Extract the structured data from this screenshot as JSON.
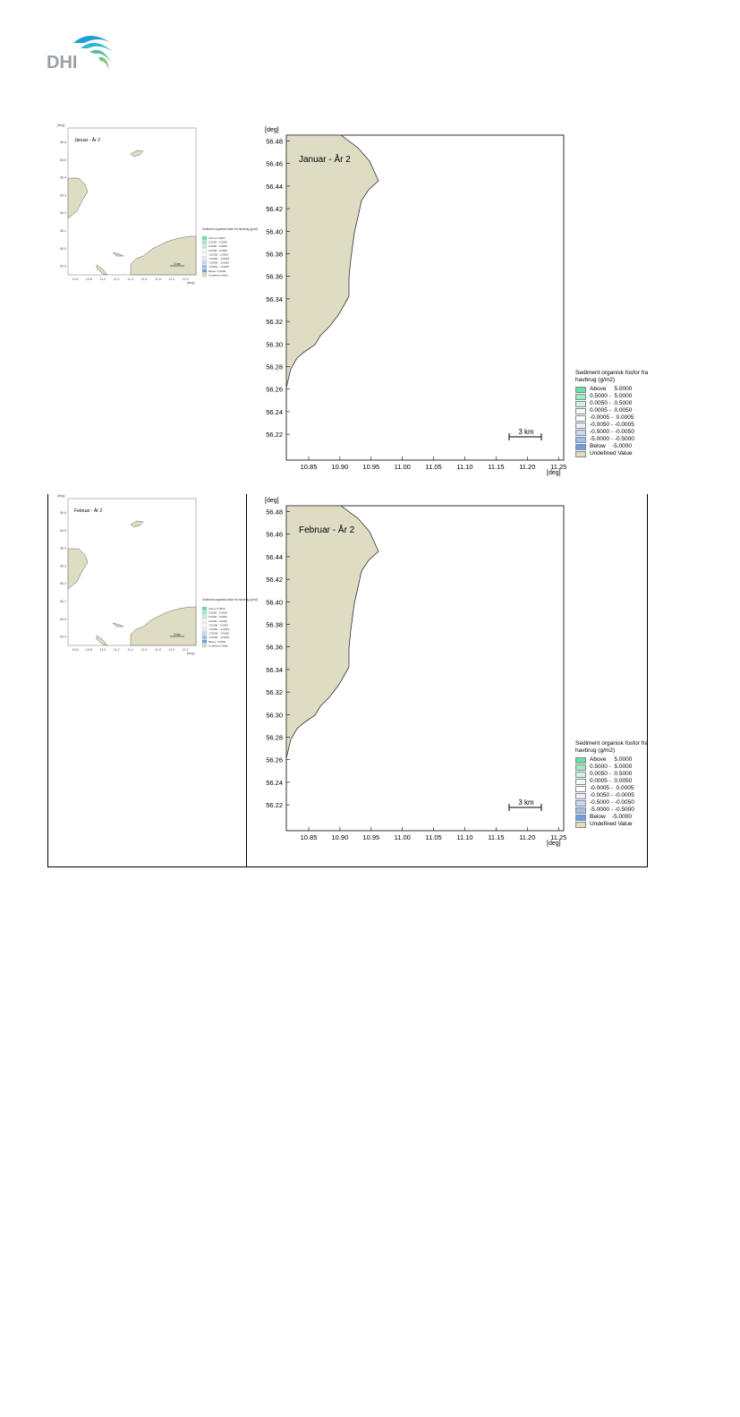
{
  "logo": {
    "text": "DHI"
  },
  "colors": {
    "land": "#dedcc3",
    "coast": "#333333"
  },
  "panels": [
    {
      "id": "jan",
      "title": "Januar - År 2",
      "y_unit": "[deg]",
      "x_unit": "[deg]",
      "y_ticks": [
        "56.48",
        "56.46",
        "56.44",
        "56.42",
        "56.40",
        "56.38",
        "56.36",
        "56.34",
        "56.32",
        "56.30",
        "56.28",
        "56.26",
        "56.24",
        "56.22"
      ],
      "x_ticks": [
        "10.85",
        "10.90",
        "10.95",
        "11.00",
        "11.05",
        "11.10",
        "11.15",
        "11.20",
        "11.25"
      ],
      "scale_bar": "3 km",
      "legend": {
        "title": "Sediment organisk fosfor fra havbrug (g/m2)",
        "items": [
          {
            "label": "Above     5.0000",
            "color": "#66e0a8"
          },
          {
            "label": "0.5000 -  5.0000",
            "color": "#99ecc4"
          },
          {
            "label": "0.0050 -  0.5000",
            "color": "#ccf5e1"
          },
          {
            "label": "0.0005 -  0.0050",
            "color": "#eefbf4"
          },
          {
            "label": "-0.0005 -  0.0005",
            "color": "#ffffff"
          },
          {
            "label": "-0.0050 - -0.0005",
            "color": "#e8eefb"
          },
          {
            "label": "-0.5000 - -0.0050",
            "color": "#c8d8f4"
          },
          {
            "label": "-5.0000 - -0.5000",
            "color": "#a0bdee"
          },
          {
            "label": "Below    -5.0000",
            "color": "#6e9fe6"
          },
          {
            "label": "Undefined Value",
            "color": "#dedcc3"
          }
        ]
      },
      "thumb": {
        "title": "Januar - År 2",
        "y_unit": "[deg]",
        "x_unit": "[deg]",
        "y_ticks": [
          "56.6",
          "56.5",
          "56.4",
          "56.3",
          "56.2",
          "56.1",
          "56.0",
          "55.9"
        ],
        "x_ticks": [
          "10.6",
          "10.8",
          "11.0",
          "11.2",
          "11.4",
          "11.6",
          "11.8",
          "12.0",
          "12.2"
        ]
      }
    },
    {
      "id": "feb",
      "title": "Februar - År 2",
      "y_unit": "[deg]",
      "x_unit": "[deg]",
      "y_ticks": [
        "56.48",
        "56.46",
        "56.44",
        "56.42",
        "56.40",
        "56.38",
        "56.36",
        "56.34",
        "56.32",
        "56.30",
        "56.28",
        "56.26",
        "56.24",
        "56.22"
      ],
      "x_ticks": [
        "10.85",
        "10.90",
        "10.95",
        "11.00",
        "11.05",
        "11.10",
        "11.15",
        "11.20",
        "11.25"
      ],
      "scale_bar": "3 km",
      "legend": {
        "title": "Sediment organisk fosfor fra havbrug (g/m2)",
        "items": [
          {
            "label": "Above     5.0000",
            "color": "#66e0a8"
          },
          {
            "label": "0.5000 -  5.0000",
            "color": "#99ecc4"
          },
          {
            "label": "0.0050 -  0.5000",
            "color": "#ccf5e1"
          },
          {
            "label": "0.0005 -  0.0050",
            "color": "#eefbf4"
          },
          {
            "label": "-0.0005 -  0.0005",
            "color": "#ffffff"
          },
          {
            "label": "-0.0050 - -0.0005",
            "color": "#e8eefb"
          },
          {
            "label": "-0.5000 - -0.0050",
            "color": "#c8d8f4"
          },
          {
            "label": "-5.0000 - -0.5000",
            "color": "#a0bdee"
          },
          {
            "label": "Below    -5.0000",
            "color": "#6e9fe6"
          },
          {
            "label": "Undefined Value",
            "color": "#dedcc3"
          }
        ]
      },
      "thumb": {
        "title": "Februar - År 2",
        "y_unit": "[deg]",
        "x_unit": "[deg]",
        "y_ticks": [
          "56.6",
          "56.5",
          "56.4",
          "56.3",
          "56.2",
          "56.1",
          "56.0",
          "55.9"
        ],
        "x_ticks": [
          "10.6",
          "10.8",
          "11.0",
          "11.2",
          "11.4",
          "11.6",
          "11.8",
          "12.0",
          "12.2"
        ]
      }
    }
  ]
}
